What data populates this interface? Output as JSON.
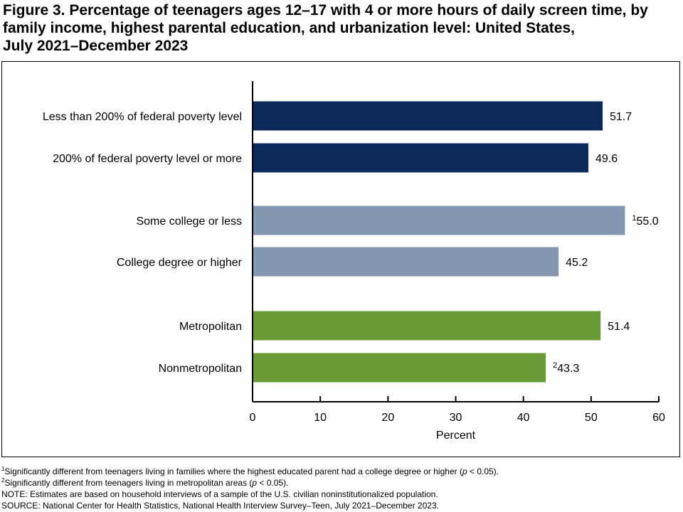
{
  "title_lines": [
    "Figure 3. Percentage of teenagers ages 12–17 with 4 or more hours of daily screen time, by",
    "family income, highest parental education, and urbanization level: United States,",
    "July 2021–December 2023"
  ],
  "chart_data": {
    "type": "bar",
    "orientation": "horizontal",
    "categories": [
      "Less than 200% of federal poverty level",
      "200% of federal poverty level or more",
      "Some college or less",
      "College degree or higher",
      "Metropolitan",
      "Nonmetropolitan"
    ],
    "values": [
      51.7,
      49.6,
      55.0,
      45.2,
      51.4,
      43.3
    ],
    "value_labels": [
      "51.7",
      "49.6",
      "55.0",
      "45.2",
      "51.4",
      "43.3"
    ],
    "value_superscripts": [
      "",
      "",
      "1",
      "",
      "",
      "2"
    ],
    "bar_colors": [
      "#0b2a5a",
      "#0b2a5a",
      "#8497b0",
      "#8497b0",
      "#6a9a35",
      "#6a9a35"
    ],
    "groups": [
      {
        "members": [
          0,
          1
        ]
      },
      {
        "members": [
          2,
          3
        ]
      },
      {
        "members": [
          4,
          5
        ]
      }
    ],
    "xlabel": "Percent",
    "xlim": [
      0,
      60
    ],
    "xticks": [
      0,
      10,
      20,
      30,
      40,
      50,
      60
    ],
    "grid": false,
    "legend": "none"
  },
  "footnotes": {
    "fn1_mark": "1",
    "fn1_text": "Significantly different from teenagers living in families where the highest educated parent had a college degree or higher (",
    "fn1_p": "p",
    "fn1_end": " < 0.05).",
    "fn2_mark": "2",
    "fn2_text": "Significantly different from teenagers living in metropolitan areas (",
    "fn2_p": "p",
    "fn2_end": " < 0.05).",
    "note": "NOTE: Estimates are based on household interviews of a sample of the U.S. civilian noninstitutionalized population.",
    "source": "SOURCE: National Center for Health Statistics, National Health Interview Survey–Teen, July 2021–December 2023."
  }
}
